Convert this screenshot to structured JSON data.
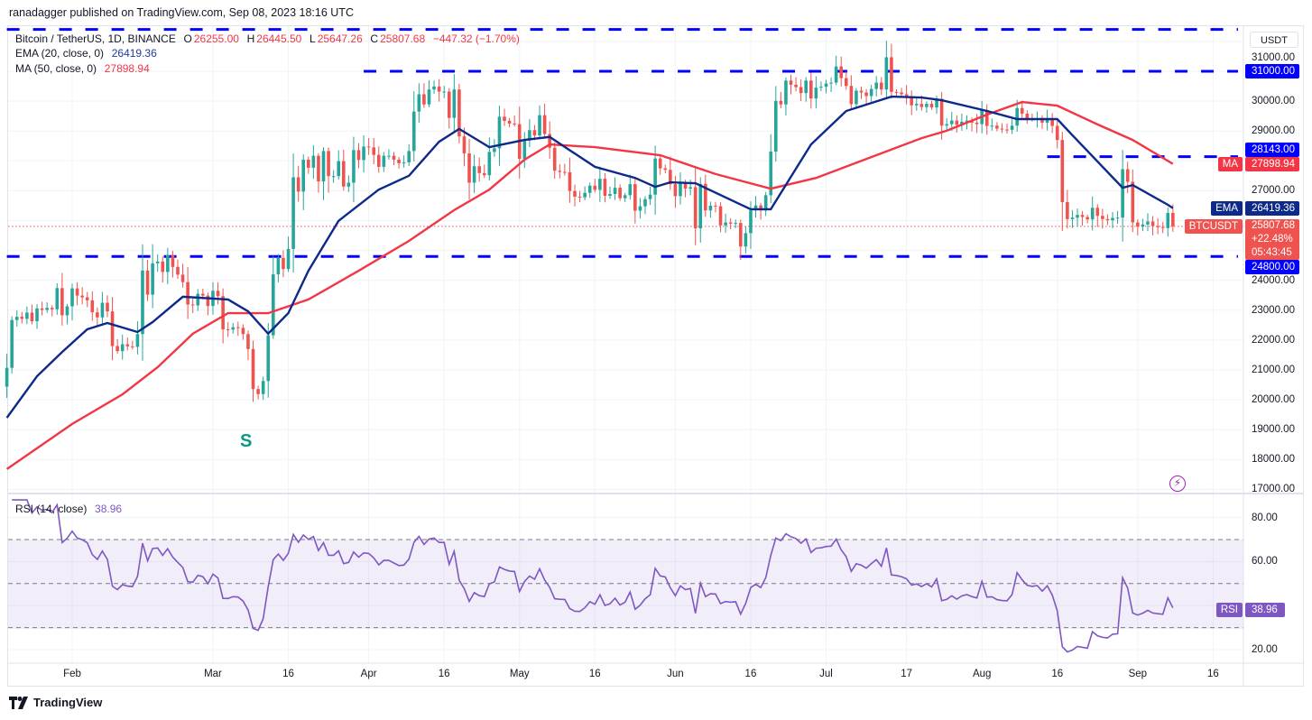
{
  "header": {
    "text": "ranadagger published on TradingView.com, Sep 08, 2023 18:16 UTC"
  },
  "legend": {
    "symbol": "Bitcoin / TetherUS, 1D, BINANCE",
    "o_label": "O",
    "o": "26255.00",
    "h_label": "H",
    "h": "26445.50",
    "l_label": "L",
    "l": "25647.26",
    "c_label": "C",
    "c": "25807.68",
    "change": "−447.32 (−1.70%)",
    "ema_label": "EMA (20, close, 0)",
    "ema_value": "26419.36",
    "ma_label": "MA (50, close, 0)",
    "ma_value": "27898.94",
    "rsi_label": "RSI (14, close)",
    "rsi_value": "38.96"
  },
  "currency": "USDT",
  "annotation": "S",
  "footer": {
    "brand": "TradingView"
  },
  "badges": {
    "level_28143": "28143.00",
    "ma_tag": "MA",
    "ma_value": "27898.94",
    "ema_tag": "EMA",
    "ema_value": "26419.36",
    "symbol_tag": "BTCUSDT",
    "price": "25807.68",
    "pct": "+22.48%",
    "countdown": "05:43:45",
    "level_24800": "24800.00",
    "level_31000": "31000.00",
    "rsi_tag": "RSI",
    "rsi_value": "38.96"
  },
  "colors": {
    "up": "#26a69a",
    "down": "#ef5350",
    "ema": "#0d2a8a",
    "ma": "#f23645",
    "level": "#0000ff",
    "rsi": "#7e57c2"
  },
  "chart_data": [
    {
      "type": "candlestick",
      "title": "Bitcoin / TetherUS, 1D, BINANCE",
      "ylim": [
        16800,
        32600
      ],
      "y_scale": "linear",
      "grid": true,
      "yticks": [
        "31000.00",
        "30000.00",
        "29000.00",
        "27000.00",
        "24000.00",
        "23000.00",
        "22000.00",
        "21000.00",
        "20000.00",
        "19000.00",
        "18000.00",
        "17000.00"
      ],
      "xticks": [
        {
          "label": "Feb",
          "date": "2023-02-01"
        },
        {
          "label": "Mar",
          "date": "2023-03-01"
        },
        {
          "label": "16",
          "date": "2023-03-16"
        },
        {
          "label": "Apr",
          "date": "2023-04-01"
        },
        {
          "label": "16",
          "date": "2023-04-16"
        },
        {
          "label": "May",
          "date": "2023-05-01"
        },
        {
          "label": "16",
          "date": "2023-05-16"
        },
        {
          "label": "Jun",
          "date": "2023-06-01"
        },
        {
          "label": "16",
          "date": "2023-06-16"
        },
        {
          "label": "Jul",
          "date": "2023-07-01"
        },
        {
          "label": "17",
          "date": "2023-07-17"
        },
        {
          "label": "Aug",
          "date": "2023-08-01"
        },
        {
          "label": "16",
          "date": "2023-08-16"
        },
        {
          "label": "Sep",
          "date": "2023-09-01"
        },
        {
          "label": "16",
          "date": "2023-09-16"
        }
      ],
      "daily_close": [
        {
          "month": "2023-01",
          "from_day": 19,
          "close": [
            21070,
            22670,
            22780,
            22710,
            22920,
            22630,
            23060,
            23010,
            23080,
            23030,
            23740,
            22830,
            23130
          ]
        },
        {
          "month": "2023-02",
          "from_day": 1,
          "close": [
            23730,
            23490,
            23430,
            23330,
            22930,
            22760,
            23250,
            22960,
            21800,
            21630,
            21860,
            21790,
            21770,
            22200,
            24330,
            23520,
            24570,
            24630,
            24280,
            24840,
            24450,
            24190,
            23940,
            23190,
            23160,
            23550,
            23490,
            23140
          ]
        },
        {
          "month": "2023-03",
          "from_day": 1,
          "close": [
            23650,
            23470,
            22360,
            22350,
            22430,
            22410,
            22200,
            21700,
            20360,
            20190,
            20630,
            22160,
            24200,
            24750,
            24380,
            25050,
            27450,
            26970,
            28040,
            27770,
            28170,
            27310,
            28330,
            27490,
            27490,
            27990,
            27140,
            27270,
            28360,
            28030,
            28480
          ]
        },
        {
          "month": "2023-04",
          "from_day": 1,
          "close": [
            28450,
            28200,
            27800,
            28170,
            28170,
            28040,
            27920,
            27950,
            28330,
            29650,
            30230,
            29890,
            30390,
            30490,
            30320,
            30320,
            29440,
            30390,
            28820,
            28250,
            27270,
            27820,
            27590,
            27520,
            28300,
            28420,
            29480,
            29340,
            29250,
            29230
          ]
        },
        {
          "month": "2023-05",
          "from_day": 1,
          "close": [
            28070,
            28680,
            29030,
            28850,
            29530,
            28900,
            28440,
            27670,
            27630,
            27620,
            26990,
            26800,
            26780,
            26930,
            27170,
            27030,
            27400,
            26830,
            26890,
            27100,
            26750,
            26850,
            27220,
            26330,
            26480,
            26720,
            26870,
            28080,
            27750,
            27700,
            27220
          ]
        },
        {
          "month": "2023-06",
          "from_day": 1,
          "close": [
            26820,
            27250,
            27070,
            27120,
            25740,
            27230,
            26340,
            26500,
            26480,
            25840,
            25940,
            25900,
            25920,
            25130,
            25580,
            26340,
            26510,
            26340,
            26850,
            28310,
            30010,
            29890,
            30690,
            30550,
            30470,
            30270,
            30690,
            30090,
            30450,
            30480
          ]
        },
        {
          "month": "2023-07",
          "from_day": 1,
          "close": [
            30590,
            30620,
            31160,
            30770,
            30510,
            29900,
            30350,
            30290,
            30170,
            30410,
            30620,
            30390,
            31470,
            30310,
            30290,
            30230,
            30140,
            29860,
            29910,
            29800,
            29910,
            29790,
            30080,
            29180,
            29230,
            29350,
            29210,
            29310,
            29350,
            29280,
            29230
          ]
        },
        {
          "month": "2023-08",
          "from_day": 1,
          "close": [
            29700,
            29170,
            29180,
            29080,
            29050,
            29040,
            29180,
            29770,
            29580,
            29430,
            29400,
            29420,
            29280,
            29400,
            29170,
            28700,
            26620,
            26050,
            26100,
            26190,
            26120,
            26040,
            26430,
            26160,
            26050,
            26010,
            26090,
            26100,
            27720,
            27300,
            25940
          ]
        },
        {
          "month": "2023-09",
          "from_day": 1,
          "close": [
            25800,
            25870,
            25970,
            25820,
            25780,
            25750,
            26255,
            25807.68
          ]
        }
      ],
      "series": [
        {
          "name": "EMA (20, close, 0)",
          "color": "#0d2a8a",
          "points": [
            [
              "2023-01-19",
              19400
            ],
            [
              "2023-01-25",
              20790
            ],
            [
              "2023-01-30",
              21600
            ],
            [
              "2023-02-04",
              22360
            ],
            [
              "2023-02-08",
              22570
            ],
            [
              "2023-02-14",
              22270
            ],
            [
              "2023-02-17",
              22600
            ],
            [
              "2023-02-23",
              23450
            ],
            [
              "2023-03-04",
              23360
            ],
            [
              "2023-03-08",
              22960
            ],
            [
              "2023-03-12",
              22210
            ],
            [
              "2023-03-16",
              22900
            ],
            [
              "2023-03-20",
              24320
            ],
            [
              "2023-03-26",
              25990
            ],
            [
              "2023-04-03",
              27040
            ],
            [
              "2023-04-09",
              27500
            ],
            [
              "2023-04-15",
              28640
            ],
            [
              "2023-04-19",
              29070
            ],
            [
              "2023-04-25",
              28460
            ],
            [
              "2023-05-02",
              28700
            ],
            [
              "2023-05-07",
              28800
            ],
            [
              "2023-05-16",
              27800
            ],
            [
              "2023-05-24",
              27430
            ],
            [
              "2023-05-28",
              27130
            ],
            [
              "2023-05-31",
              27280
            ],
            [
              "2023-06-05",
              27250
            ],
            [
              "2023-06-16",
              26380
            ],
            [
              "2023-06-20",
              26380
            ],
            [
              "2023-06-28",
              28550
            ],
            [
              "2023-07-05",
              29670
            ],
            [
              "2023-07-14",
              30150
            ],
            [
              "2023-07-20",
              30120
            ],
            [
              "2023-07-24",
              30030
            ],
            [
              "2023-08-02",
              29670
            ],
            [
              "2023-08-08",
              29400
            ],
            [
              "2023-08-16",
              29400
            ],
            [
              "2023-08-19",
              28860
            ],
            [
              "2023-08-29",
              27100
            ],
            [
              "2023-08-31",
              27190
            ],
            [
              "2023-09-07",
              26530
            ],
            [
              "2023-09-08",
              26419.36
            ]
          ]
        },
        {
          "name": "MA (50, close, 0)",
          "color": "#f23645",
          "points": [
            [
              "2023-01-19",
              17680
            ],
            [
              "2023-02-01",
              19190
            ],
            [
              "2023-02-11",
              20180
            ],
            [
              "2023-02-18",
              21090
            ],
            [
              "2023-02-25",
              22210
            ],
            [
              "2023-03-04",
              22900
            ],
            [
              "2023-03-12",
              22900
            ],
            [
              "2023-03-20",
              23360
            ],
            [
              "2023-03-30",
              24320
            ],
            [
              "2023-04-09",
              25320
            ],
            [
              "2023-04-18",
              26350
            ],
            [
              "2023-04-25",
              27040
            ],
            [
              "2023-05-02",
              28040
            ],
            [
              "2023-05-07",
              28550
            ],
            [
              "2023-05-16",
              28460
            ],
            [
              "2023-05-29",
              28190
            ],
            [
              "2023-06-09",
              27560
            ],
            [
              "2023-06-20",
              27070
            ],
            [
              "2023-06-29",
              27430
            ],
            [
              "2023-07-11",
              28190
            ],
            [
              "2023-07-20",
              28760
            ],
            [
              "2023-07-25",
              29010
            ],
            [
              "2023-08-02",
              29550
            ],
            [
              "2023-08-09",
              29970
            ],
            [
              "2023-08-16",
              29850
            ],
            [
              "2023-08-24",
              29220
            ],
            [
              "2023-08-31",
              28700
            ],
            [
              "2023-09-08",
              27898.94
            ]
          ]
        }
      ],
      "levels": [
        {
          "value": 32400,
          "from": "2023-01-19",
          "style": "dashed"
        },
        {
          "value": 31000,
          "from": "2023-03-31",
          "style": "dashed"
        },
        {
          "value": 28143,
          "from": "2023-08-14",
          "style": "dashed"
        },
        {
          "value": 24800,
          "from": "2023-01-19",
          "style": "dashed"
        }
      ]
    },
    {
      "type": "line",
      "title": "RSI (14, close)",
      "ylim": [
        15,
        88
      ],
      "yticks": [
        "80.00",
        "60.00",
        "20.00"
      ],
      "band": [
        30,
        70
      ],
      "dashed_lines": [
        70,
        50,
        30
      ],
      "period": 14,
      "last_value": 38.96
    }
  ]
}
